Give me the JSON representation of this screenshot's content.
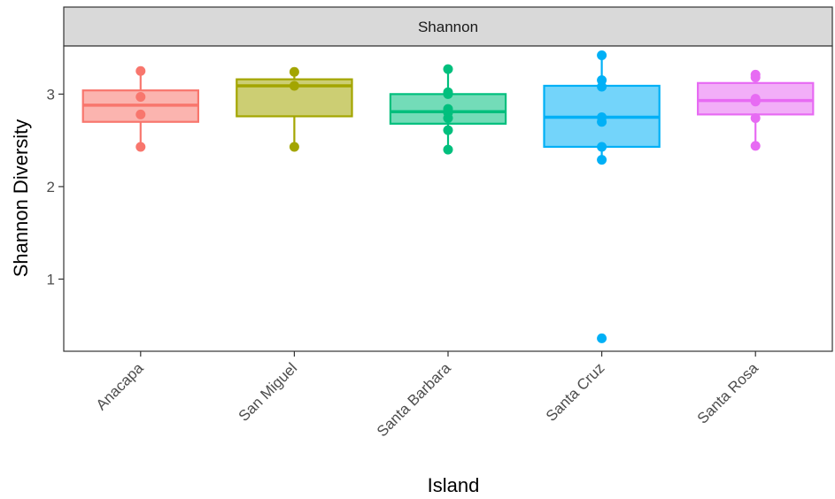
{
  "chart_data": {
    "type": "box",
    "facet_label": "Shannon",
    "xlabel": "Island",
    "ylabel": "Shannon Diversity",
    "ylim": [
      0.22,
      3.52
    ],
    "yticks": [
      1,
      2,
      3
    ],
    "grid": false,
    "legend": "none",
    "categories": [
      "Anacapa",
      "San Miguel",
      "Santa Barbara",
      "Santa Cruz",
      "Santa Rosa"
    ],
    "colors": [
      "#F8766D",
      "#A3A500",
      "#00BF7D",
      "#00B0F6",
      "#E76BF3"
    ],
    "boxes": [
      {
        "q1": 2.7,
        "median": 2.88,
        "q3": 3.04,
        "whisker_low": 2.43,
        "whisker_high": 3.25
      },
      {
        "q1": 2.76,
        "median": 3.09,
        "q3": 3.16,
        "whisker_low": 2.43,
        "whisker_high": 3.24
      },
      {
        "q1": 2.68,
        "median": 2.81,
        "q3": 3.0,
        "whisker_low": 2.4,
        "whisker_high": 3.27
      },
      {
        "q1": 2.43,
        "median": 2.75,
        "q3": 3.09,
        "whisker_low": 2.29,
        "whisker_high": 3.42
      },
      {
        "q1": 2.78,
        "median": 2.93,
        "q3": 3.12,
        "whisker_low": 2.44,
        "whisker_high": 3.21
      }
    ],
    "points": [
      [
        3.25,
        2.97,
        2.78,
        2.43
      ],
      [
        3.24,
        3.09,
        2.43
      ],
      [
        3.27,
        3.02,
        3.0,
        2.84,
        2.8,
        2.74,
        2.61,
        2.4
      ],
      [
        3.42,
        3.15,
        3.08,
        2.75,
        2.7,
        2.43,
        2.29,
        0.36
      ],
      [
        3.21,
        3.18,
        2.95,
        2.92,
        2.74,
        2.44
      ]
    ]
  }
}
